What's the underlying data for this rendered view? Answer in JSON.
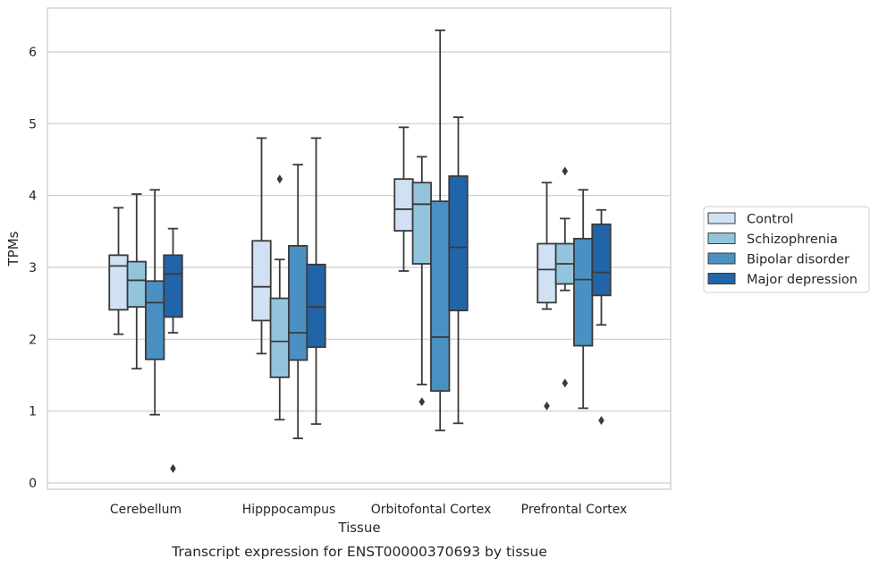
{
  "caption": "Transcript expression for ENST00000370693 by tissue",
  "chart_data": {
    "type": "box",
    "xlabel": "Tissue",
    "ylabel": "TPMs",
    "ylim": [
      -0.1,
      6.6
    ],
    "yticks": [
      0,
      1,
      2,
      3,
      4,
      5,
      6
    ],
    "grid": "horizontal",
    "legend_position": "right, outside plot",
    "categories": [
      "Cerebellum",
      "Hipppocampus",
      "Orbitofontal Cortex",
      "Prefrontal Cortex"
    ],
    "series": [
      {
        "name": "Control",
        "color": "#cfe1f2",
        "boxes": [
          {
            "whisker_low": 2.07,
            "q1": 2.41,
            "median": 3.02,
            "q3": 3.17,
            "whisker_high": 3.83,
            "outliers": []
          },
          {
            "whisker_low": 1.8,
            "q1": 2.26,
            "median": 2.73,
            "q3": 3.37,
            "whisker_high": 4.8,
            "outliers": []
          },
          {
            "whisker_low": 2.95,
            "q1": 3.51,
            "median": 3.81,
            "q3": 4.23,
            "whisker_high": 4.95,
            "outliers": []
          },
          {
            "whisker_low": 2.42,
            "q1": 2.51,
            "median": 2.97,
            "q3": 3.33,
            "whisker_high": 4.18,
            "outliers": [
              1.07
            ]
          }
        ]
      },
      {
        "name": "Schizophrenia",
        "color": "#93c4de",
        "boxes": [
          {
            "whisker_low": 1.59,
            "q1": 2.45,
            "median": 2.82,
            "q3": 3.08,
            "whisker_high": 4.02,
            "outliers": []
          },
          {
            "whisker_low": 0.88,
            "q1": 1.47,
            "median": 1.97,
            "q3": 2.57,
            "whisker_high": 3.11,
            "outliers": [
              4.23
            ]
          },
          {
            "whisker_low": 1.37,
            "q1": 3.05,
            "median": 3.88,
            "q3": 4.18,
            "whisker_high": 4.54,
            "outliers": [
              1.13
            ]
          },
          {
            "whisker_low": 2.68,
            "q1": 2.77,
            "median": 3.05,
            "q3": 3.33,
            "whisker_high": 3.68,
            "outliers": [
              4.34,
              1.39
            ]
          }
        ]
      },
      {
        "name": "Bipolar disorder",
        "color": "#4b90c2",
        "boxes": [
          {
            "whisker_low": 0.95,
            "q1": 1.72,
            "median": 2.51,
            "q3": 2.81,
            "whisker_high": 4.08,
            "outliers": []
          },
          {
            "whisker_low": 0.62,
            "q1": 1.71,
            "median": 2.09,
            "q3": 3.3,
            "whisker_high": 4.43,
            "outliers": []
          },
          {
            "whisker_low": 0.73,
            "q1": 1.28,
            "median": 2.03,
            "q3": 3.92,
            "whisker_high": 6.3,
            "outliers": []
          },
          {
            "whisker_low": 1.04,
            "q1": 1.91,
            "median": 2.83,
            "q3": 3.4,
            "whisker_high": 4.08,
            "outliers": []
          }
        ]
      },
      {
        "name": "Major depression",
        "color": "#2264a8",
        "boxes": [
          {
            "whisker_low": 2.09,
            "q1": 2.31,
            "median": 2.91,
            "q3": 3.17,
            "whisker_high": 3.54,
            "outliers": [
              0.2
            ]
          },
          {
            "whisker_low": 0.82,
            "q1": 1.89,
            "median": 2.45,
            "q3": 3.04,
            "whisker_high": 4.8,
            "outliers": []
          },
          {
            "whisker_low": 0.83,
            "q1": 2.4,
            "median": 3.28,
            "q3": 4.27,
            "whisker_high": 5.09,
            "outliers": []
          },
          {
            "whisker_low": 2.2,
            "q1": 2.61,
            "median": 2.93,
            "q3": 3.6,
            "whisker_high": 3.8,
            "outliers": [
              0.87
            ]
          }
        ]
      }
    ]
  }
}
